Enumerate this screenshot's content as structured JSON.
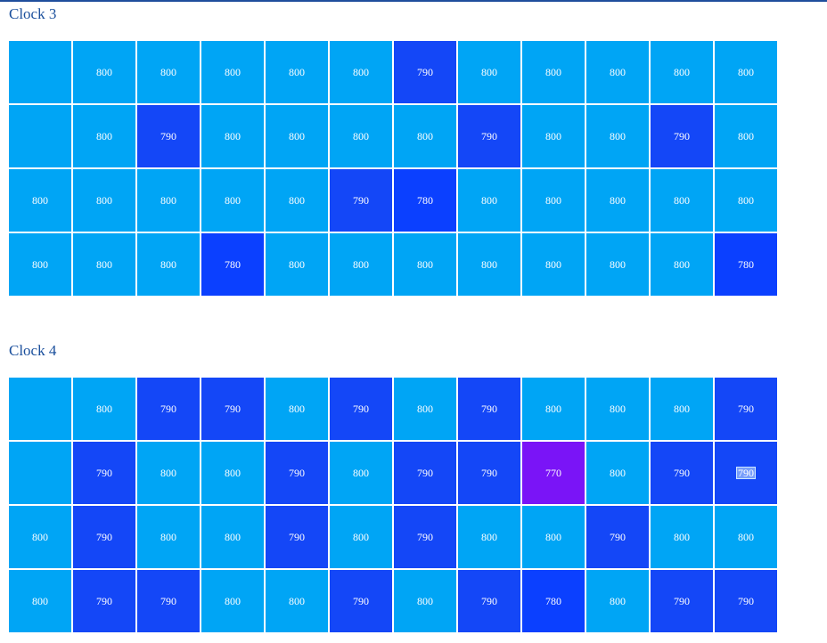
{
  "colors": {
    "v800": "#00a5f5",
    "v790": "#1447f7",
    "v780": "#0b40ff",
    "v770": "#7a14f7",
    "empty": "#00a5f5",
    "title": "#1a4f9c"
  },
  "clock3": {
    "title": "Clock 3",
    "rows": [
      [
        "",
        "800",
        "800",
        "800",
        "800",
        "800",
        "790",
        "800",
        "800",
        "800",
        "800",
        "800"
      ],
      [
        "",
        "800",
        "790",
        "800",
        "800",
        "800",
        "800",
        "790",
        "800",
        "800",
        "790",
        "800"
      ],
      [
        "800",
        "800",
        "800",
        "800",
        "800",
        "790",
        "780",
        "800",
        "800",
        "800",
        "800",
        "800"
      ],
      [
        "800",
        "800",
        "800",
        "780",
        "800",
        "800",
        "800",
        "800",
        "800",
        "800",
        "800",
        "780"
      ]
    ]
  },
  "clock4": {
    "title": "Clock 4",
    "rows": [
      [
        "",
        "800",
        "790",
        "790",
        "800",
        "790",
        "800",
        "790",
        "800",
        "800",
        "800",
        "790"
      ],
      [
        "",
        "790",
        "800",
        "800",
        "790",
        "800",
        "790",
        "790",
        "770",
        "800",
        "790",
        "790"
      ],
      [
        "800",
        "790",
        "800",
        "800",
        "790",
        "800",
        "790",
        "800",
        "800",
        "790",
        "800",
        "800"
      ],
      [
        "800",
        "790",
        "790",
        "800",
        "800",
        "790",
        "800",
        "790",
        "780",
        "800",
        "790",
        "790"
      ]
    ],
    "highlighted_cell": {
      "row": 1,
      "col": 11
    }
  }
}
